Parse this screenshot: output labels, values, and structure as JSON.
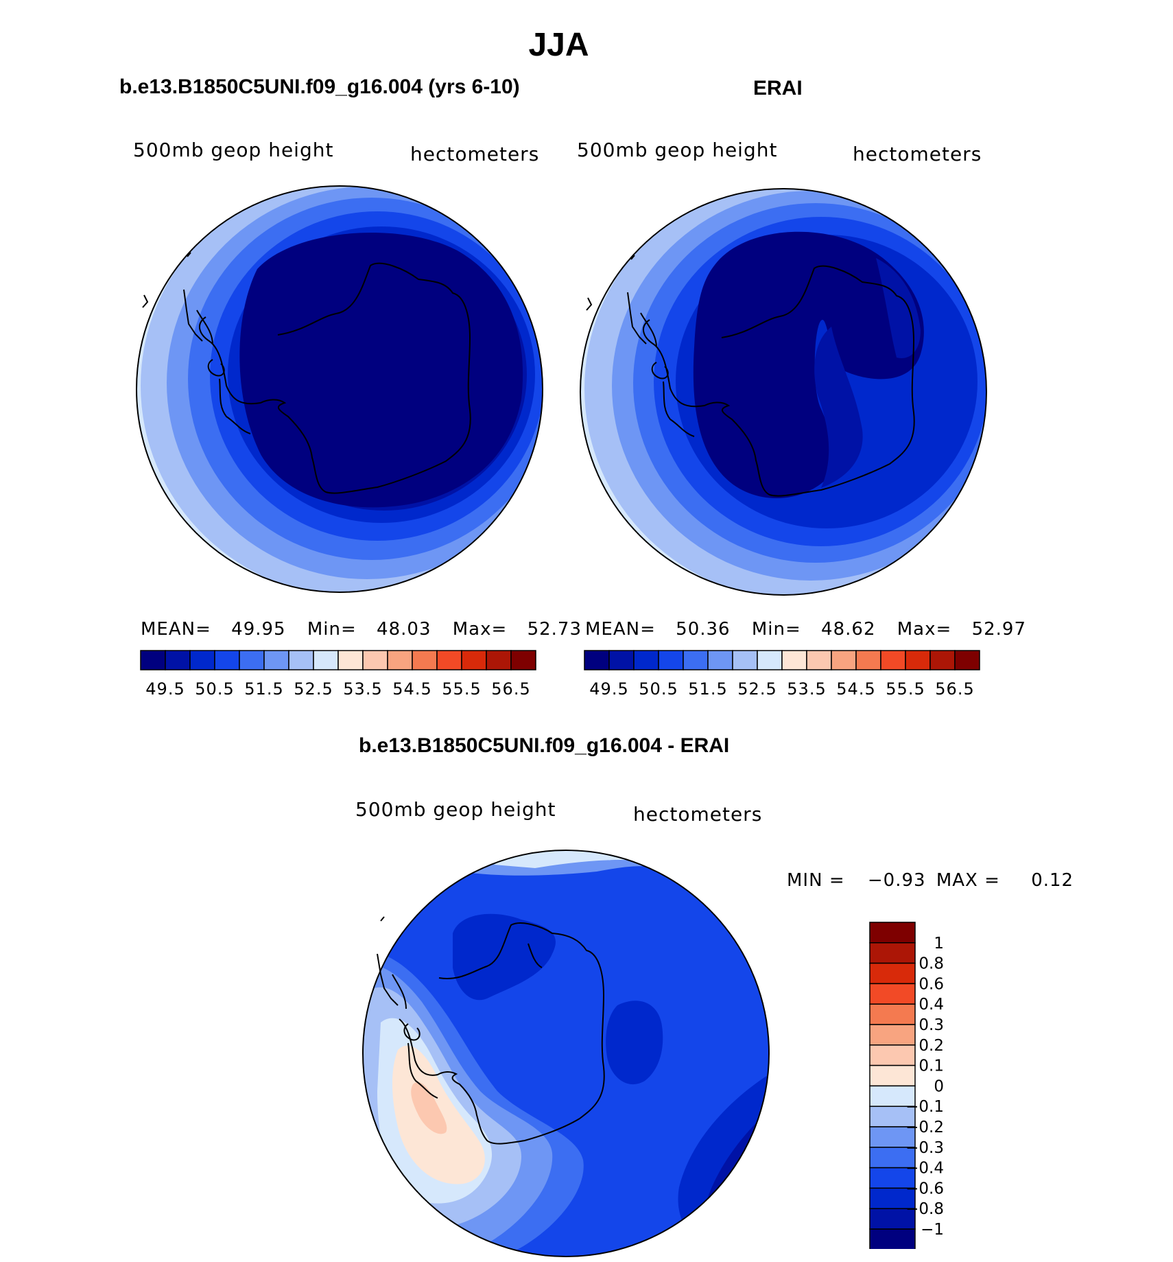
{
  "figure": {
    "season": "JJA"
  },
  "panels": {
    "model": {
      "title": "b.e13.B1850C5UNI.f09_g16.004 (yrs 6-10)",
      "variable": "500mb geop height",
      "units": "hectometers",
      "stats": {
        "mean_label": "MEAN=",
        "mean": "49.95",
        "min_label": "Min=",
        "min": "48.03",
        "max_label": "Max=",
        "max": "52.73"
      }
    },
    "obs": {
      "title": "ERAI",
      "variable": "500mb geop height",
      "units": "hectometers",
      "stats": {
        "mean_label": "MEAN=",
        "mean": "50.36",
        "min_label": "Min=",
        "min": "48.62",
        "max_label": "Max=",
        "max": "52.97"
      }
    },
    "diff": {
      "title": "b.e13.B1850C5UNI.f09_g16.004 - ERAI",
      "variable": "500mb geop height",
      "units": "hectometers",
      "stats": {
        "min_label": "MIN =",
        "min": "−0.93",
        "max_label": "MAX =",
        "max": "0.12"
      }
    }
  },
  "colorbar_main": {
    "colors": [
      "#00007f",
      "#0012a6",
      "#0028cc",
      "#1446ea",
      "#3c6ef2",
      "#6e96f4",
      "#a6c0f6",
      "#d6e8fc",
      "#fde6d6",
      "#fcc8b0",
      "#f8a480",
      "#f47a50",
      "#f24a26",
      "#d82a0a",
      "#ac1606",
      "#7e0000"
    ],
    "tick_labels": [
      "49.5",
      "50.5",
      "51.5",
      "52.5",
      "53.5",
      "54.5",
      "55.5",
      "56.5"
    ]
  },
  "colorbar_diff": {
    "colors_top_to_bottom": [
      "#7e0000",
      "#ac1606",
      "#d82a0a",
      "#f24a26",
      "#f47a50",
      "#f8a480",
      "#fcc8b0",
      "#fde6d6",
      "#d6e8fc",
      "#a6c0f6",
      "#6e96f4",
      "#3c6ef2",
      "#1446ea",
      "#0028cc",
      "#0012a6",
      "#00007f"
    ],
    "tick_labels_top_to_bottom": [
      "1",
      "0.8",
      "0.6",
      "0.4",
      "0.3",
      "0.2",
      "0.1",
      "0",
      "−0.1",
      "−0.2",
      "−0.3",
      "−0.4",
      "−0.6",
      "−0.8",
      "−1"
    ]
  },
  "chart_data": [
    {
      "type": "heatmap",
      "title": "b.e13.B1850C5UNI.f09_g16.004 (yrs 6-10)",
      "subtitle": "500mb geop height",
      "units": "hectometers",
      "mean": 49.95,
      "min": 48.03,
      "max": 52.73,
      "levels": [
        49.5,
        50,
        50.5,
        51,
        51.5,
        52,
        52.5,
        53,
        53.5,
        54,
        54.5,
        55,
        55.5,
        56,
        56.5
      ]
    },
    {
      "type": "heatmap",
      "title": "ERAI",
      "subtitle": "500mb geop height",
      "units": "hectometers",
      "mean": 50.36,
      "min": 48.62,
      "max": 52.97,
      "levels": [
        49.5,
        50,
        50.5,
        51,
        51.5,
        52,
        52.5,
        53,
        53.5,
        54,
        54.5,
        55,
        55.5,
        56,
        56.5
      ]
    },
    {
      "type": "heatmap",
      "title": "b.e13.B1850C5UNI.f09_g16.004 - ERAI",
      "subtitle": "500mb geop height",
      "units": "hectometers",
      "min": -0.93,
      "max": 0.12,
      "levels": [
        -1,
        -0.8,
        -0.6,
        -0.4,
        -0.3,
        -0.2,
        -0.1,
        0,
        0.1,
        0.2,
        0.3,
        0.4,
        0.6,
        0.8,
        1
      ]
    }
  ]
}
